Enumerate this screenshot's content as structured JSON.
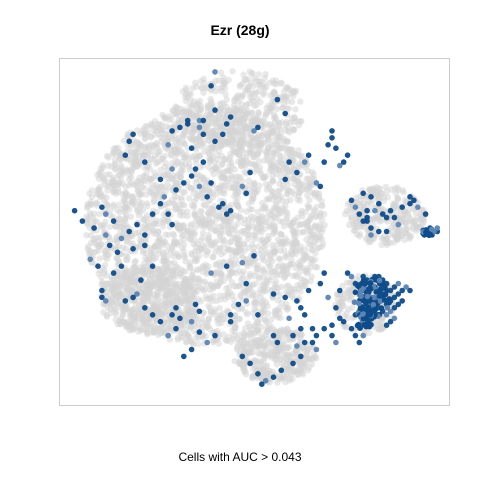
{
  "chart_data": {
    "type": "scatter",
    "title": "Ezr (28g)",
    "caption": "Cells with AUC > 0.043",
    "xlabel": "",
    "ylabel": "",
    "xlim": [
      0,
      100
    ],
    "ylim": [
      0,
      100
    ],
    "axes_ticks": false,
    "grid": false,
    "colors": {
      "background_cells": "#d3d3d3",
      "high_auc_cells": "#0f4c8a",
      "mid_auc_cells": "#5c85b4",
      "frame": "#cccccc"
    },
    "series": [
      {
        "name": "Cells with AUC > 0.043",
        "points": [
          [
            40,
            96
          ],
          [
            39,
            92
          ],
          [
            40,
            85
          ],
          [
            29,
            79
          ],
          [
            33,
            82
          ],
          [
            28,
            75
          ],
          [
            19,
            78
          ],
          [
            18,
            76
          ],
          [
            17,
            72
          ],
          [
            26,
            65
          ],
          [
            29,
            68
          ],
          [
            22,
            70
          ],
          [
            28,
            55
          ],
          [
            29,
            52
          ],
          [
            11,
            57
          ],
          [
            12,
            55
          ],
          [
            14,
            53
          ],
          [
            4,
            56
          ],
          [
            6,
            53
          ],
          [
            9,
            51
          ],
          [
            16,
            48
          ],
          [
            22,
            49
          ],
          [
            19,
            45
          ],
          [
            22,
            46
          ],
          [
            24,
            40
          ],
          [
            20,
            32
          ],
          [
            19,
            31
          ],
          [
            17,
            30
          ],
          [
            11,
            33
          ],
          [
            11,
            31
          ],
          [
            12,
            30
          ],
          [
            21,
            36
          ],
          [
            29,
            26
          ],
          [
            30,
            28
          ],
          [
            31,
            25
          ],
          [
            34,
            24
          ],
          [
            36,
            27
          ],
          [
            35,
            29
          ],
          [
            44,
            26
          ],
          [
            44,
            24
          ],
          [
            48,
            30
          ],
          [
            46,
            29
          ],
          [
            51,
            26
          ],
          [
            48,
            35
          ],
          [
            43,
            40
          ],
          [
            39,
            38
          ],
          [
            55,
            32
          ],
          [
            58,
            31
          ],
          [
            61,
            30
          ],
          [
            62,
            28
          ],
          [
            59,
            25
          ],
          [
            63,
            26
          ],
          [
            67,
            35
          ],
          [
            64,
            33
          ],
          [
            68,
            38
          ],
          [
            69,
            31
          ],
          [
            71,
            28
          ],
          [
            72,
            33
          ],
          [
            68,
            22
          ],
          [
            70,
            20
          ],
          [
            71,
            18
          ],
          [
            62,
            14
          ],
          [
            60,
            12
          ],
          [
            57,
            10
          ],
          [
            55,
            8
          ],
          [
            53,
            7
          ],
          [
            52,
            6
          ],
          [
            51,
            9
          ],
          [
            49,
            12
          ],
          [
            47,
            14
          ],
          [
            47,
            41
          ],
          [
            50,
            43
          ],
          [
            41,
            57
          ],
          [
            43,
            55
          ],
          [
            39,
            64
          ],
          [
            47,
            63
          ],
          [
            48,
            61
          ],
          [
            49,
            67
          ],
          [
            58,
            65
          ],
          [
            61,
            67
          ],
          [
            63,
            70
          ],
          [
            64,
            72
          ],
          [
            59,
            70
          ],
          [
            68,
            70
          ],
          [
            71,
            74
          ],
          [
            72,
            69
          ],
          [
            69,
            75
          ],
          [
            70,
            77
          ],
          [
            74,
            72
          ],
          [
            73,
            70
          ],
          [
            66,
            64
          ],
          [
            67,
            63
          ],
          [
            70,
            79
          ],
          [
            58,
            84
          ],
          [
            56,
            88
          ],
          [
            50,
            79
          ],
          [
            51,
            80
          ],
          [
            44,
            83
          ],
          [
            43,
            81
          ],
          [
            42,
            78
          ],
          [
            36,
            80
          ],
          [
            37,
            78
          ],
          [
            34,
            74
          ],
          [
            37,
            70
          ],
          [
            40,
            76
          ],
          [
            36,
            82
          ],
          [
            37,
            82
          ],
          [
            33,
            81
          ],
          [
            31,
            80
          ],
          [
            75,
            59
          ],
          [
            76,
            57
          ],
          [
            77,
            55
          ],
          [
            78,
            53
          ],
          [
            80,
            51
          ],
          [
            79,
            54
          ],
          [
            81,
            56
          ],
          [
            82,
            58
          ],
          [
            83,
            55
          ],
          [
            84,
            54
          ],
          [
            82,
            50
          ],
          [
            80,
            49
          ],
          [
            79,
            53
          ],
          [
            84,
            50
          ],
          [
            85,
            56
          ],
          [
            86,
            54
          ],
          [
            87,
            52
          ],
          [
            88,
            57
          ],
          [
            90,
            58
          ],
          [
            90,
            60
          ],
          [
            91,
            59
          ],
          [
            92,
            57
          ],
          [
            94,
            55
          ],
          [
            95,
            50
          ],
          [
            96,
            50
          ],
          [
            97,
            50
          ],
          [
            97,
            51
          ],
          [
            80,
            60
          ],
          [
            78,
            61
          ],
          [
            79,
            56
          ],
          [
            74,
            38
          ],
          [
            75,
            37
          ],
          [
            76,
            35
          ],
          [
            77,
            34
          ],
          [
            78,
            33
          ],
          [
            79,
            32
          ],
          [
            80,
            31
          ],
          [
            80,
            30
          ],
          [
            81,
            29
          ],
          [
            82,
            28
          ],
          [
            83,
            27
          ],
          [
            84,
            26
          ],
          [
            85,
            30
          ],
          [
            86,
            31
          ],
          [
            87,
            32
          ],
          [
            88,
            33
          ],
          [
            89,
            34
          ],
          [
            90,
            33
          ],
          [
            88,
            30
          ],
          [
            87,
            29
          ],
          [
            86,
            28
          ],
          [
            85,
            27
          ],
          [
            84,
            29
          ],
          [
            83,
            31
          ],
          [
            82,
            33
          ],
          [
            81,
            34
          ],
          [
            80,
            35
          ],
          [
            79,
            36
          ],
          [
            78,
            37
          ],
          [
            85,
            33
          ],
          [
            86,
            34
          ],
          [
            87,
            35
          ],
          [
            84,
            35
          ],
          [
            83,
            36
          ],
          [
            82,
            37
          ],
          [
            81,
            37
          ],
          [
            86,
            25
          ],
          [
            85,
            24
          ],
          [
            84,
            23
          ],
          [
            79,
            25
          ],
          [
            78,
            24
          ],
          [
            77,
            27
          ],
          [
            76,
            26
          ],
          [
            75,
            22
          ],
          [
            76,
            20
          ],
          [
            77,
            18
          ],
          [
            78,
            20
          ],
          [
            73,
            24
          ],
          [
            72,
            25
          ],
          [
            70,
            23
          ],
          [
            60,
            20
          ],
          [
            61,
            17
          ],
          [
            62,
            22
          ],
          [
            65,
            22
          ],
          [
            66,
            20
          ],
          [
            65,
            18
          ],
          [
            66,
            16
          ],
          [
            63,
            18
          ],
          [
            56,
            18
          ],
          [
            55,
            20
          ],
          [
            40,
            20
          ],
          [
            38,
            18
          ],
          [
            36,
            21
          ],
          [
            34,
            16
          ],
          [
            32,
            14
          ],
          [
            30,
            22
          ],
          [
            28,
            20
          ],
          [
            26,
            24
          ],
          [
            24,
            26
          ],
          [
            22,
            28
          ],
          [
            10,
            40
          ],
          [
            8,
            42
          ],
          [
            14,
            38
          ],
          [
            16,
            40
          ],
          [
            15,
            44
          ],
          [
            13,
            46
          ],
          [
            12,
            49
          ],
          [
            18,
            50
          ],
          [
            20,
            52
          ],
          [
            24,
            55
          ],
          [
            26,
            58
          ],
          [
            27,
            60
          ],
          [
            30,
            62
          ],
          [
            32,
            64
          ],
          [
            34,
            66
          ],
          [
            35,
            68
          ],
          [
            36,
            63
          ],
          [
            38,
            60
          ],
          [
            42,
            58
          ],
          [
            44,
            56
          ]
        ]
      }
    ]
  }
}
